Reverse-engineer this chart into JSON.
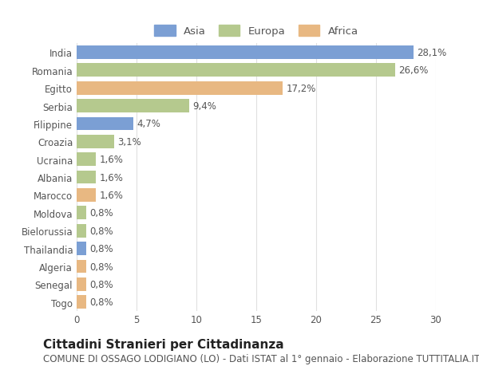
{
  "categories": [
    "India",
    "Romania",
    "Egitto",
    "Serbia",
    "Filippine",
    "Croazia",
    "Ucraina",
    "Albania",
    "Marocco",
    "Moldova",
    "Bielorussia",
    "Thailandia",
    "Algeria",
    "Senegal",
    "Togo"
  ],
  "values": [
    28.1,
    26.6,
    17.2,
    9.4,
    4.7,
    3.1,
    1.6,
    1.6,
    1.6,
    0.8,
    0.8,
    0.8,
    0.8,
    0.8,
    0.8
  ],
  "labels": [
    "28,1%",
    "26,6%",
    "17,2%",
    "9,4%",
    "4,7%",
    "3,1%",
    "1,6%",
    "1,6%",
    "1,6%",
    "0,8%",
    "0,8%",
    "0,8%",
    "0,8%",
    "0,8%",
    "0,8%"
  ],
  "colors": [
    "#7b9fd4",
    "#b5c98e",
    "#e8b882",
    "#b5c98e",
    "#7b9fd4",
    "#b5c98e",
    "#b5c98e",
    "#b5c98e",
    "#e8b882",
    "#b5c98e",
    "#b5c98e",
    "#7b9fd4",
    "#e8b882",
    "#e8b882",
    "#e8b882"
  ],
  "legend_labels": [
    "Asia",
    "Europa",
    "Africa"
  ],
  "legend_colors": [
    "#7b9fd4",
    "#b5c98e",
    "#e8b882"
  ],
  "title": "Cittadini Stranieri per Cittadinanza",
  "subtitle": "COMUNE DI OSSAGO LODIGIANO (LO) - Dati ISTAT al 1° gennaio - Elaborazione TUTTITALIA.IT",
  "xlim": [
    0,
    30
  ],
  "xticks": [
    0,
    5,
    10,
    15,
    20,
    25,
    30
  ],
  "background_color": "#ffffff",
  "grid_color": "#e0e0e0",
  "title_fontsize": 11,
  "subtitle_fontsize": 8.5,
  "label_fontsize": 8.5,
  "tick_fontsize": 8.5
}
